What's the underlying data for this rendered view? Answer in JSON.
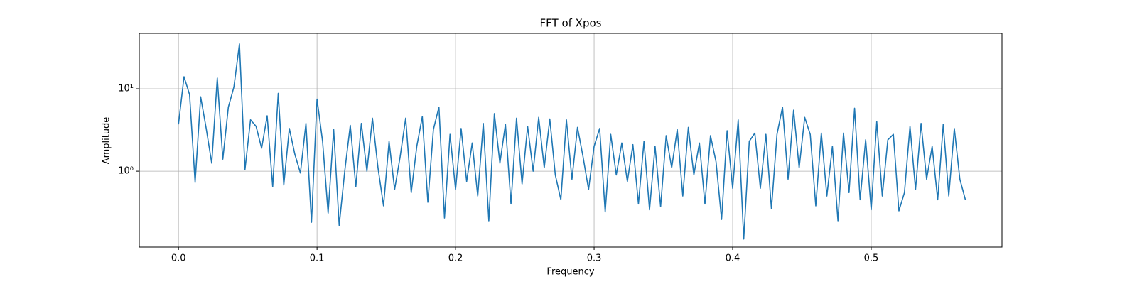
{
  "chart_data": {
    "type": "line",
    "title": "FFT of Xpos",
    "xlabel": "Frequency",
    "ylabel": "Amplitude",
    "yscale": "log",
    "grid": true,
    "xlim": [
      -0.0283,
      0.5944
    ],
    "ylim": [
      0.12,
      47
    ],
    "xticks": [
      {
        "value": 0,
        "label": "0.0"
      },
      0.1,
      0.2,
      0.3,
      0.4,
      0.5
    ],
    "yticks": [
      {
        "value": 1,
        "label": "10⁰"
      },
      {
        "value": 10,
        "label": "10¹"
      }
    ],
    "x": [
      0,
      0.004,
      0.008,
      0.012,
      0.016,
      0.02,
      0.024,
      0.028,
      0.032,
      0.036,
      0.04,
      0.044,
      0.048,
      0.052,
      0.056,
      0.06,
      0.064,
      0.068,
      0.072,
      0.076,
      0.08,
      0.084,
      0.088,
      0.092,
      0.096,
      0.1,
      0.104,
      0.108,
      0.112,
      0.116,
      0.12,
      0.124,
      0.128,
      0.132,
      0.136,
      0.14,
      0.144,
      0.148,
      0.152,
      0.156,
      0.16,
      0.164,
      0.168,
      0.172,
      0.176,
      0.18,
      0.184,
      0.188,
      0.192,
      0.196,
      0.2,
      0.204,
      0.208,
      0.212,
      0.216,
      0.22,
      0.224,
      0.228,
      0.232,
      0.236,
      0.24,
      0.244,
      0.248,
      0.252,
      0.256,
      0.26,
      0.264,
      0.268,
      0.272,
      0.276,
      0.28,
      0.284,
      0.288,
      0.292,
      0.296,
      0.3,
      0.304,
      0.308,
      0.312,
      0.316,
      0.32,
      0.324,
      0.328,
      0.332,
      0.336,
      0.34,
      0.344,
      0.348,
      0.352,
      0.356,
      0.36,
      0.364,
      0.368,
      0.372,
      0.376,
      0.38,
      0.384,
      0.388,
      0.392,
      0.396,
      0.4,
      0.404,
      0.408,
      0.412,
      0.416,
      0.42,
      0.424,
      0.428,
      0.432,
      0.436,
      0.44,
      0.444,
      0.448,
      0.452,
      0.456,
      0.46,
      0.464,
      0.468,
      0.472,
      0.476,
      0.48,
      0.484,
      0.488,
      0.492,
      0.496,
      0.5,
      0.504,
      0.508,
      0.512,
      0.516,
      0.52,
      0.524,
      0.528,
      0.532,
      0.536,
      0.54,
      0.544,
      0.548,
      0.552,
      0.556,
      0.56,
      0.564,
      0.568
    ],
    "series": [
      {
        "color": "#1f77b4",
        "values": [
          3.7,
          14,
          8.5,
          0.73,
          8,
          3.3,
          1.25,
          13.5,
          1.4,
          6,
          10.5,
          35,
          1.05,
          4.2,
          3.5,
          1.9,
          4.7,
          0.65,
          8.8,
          0.68,
          3.3,
          1.6,
          0.95,
          3.8,
          0.24,
          7.5,
          2.3,
          0.31,
          3.2,
          0.22,
          1.0,
          3.6,
          0.65,
          3.8,
          1.0,
          4.4,
          1.1,
          0.38,
          2.3,
          0.6,
          1.5,
          4.4,
          0.55,
          2.0,
          4.6,
          0.42,
          3.2,
          6.0,
          0.27,
          2.8,
          0.6,
          3.3,
          0.75,
          2.2,
          0.5,
          3.8,
          0.25,
          5.0,
          1.25,
          3.7,
          0.4,
          4.4,
          0.7,
          3.5,
          1.0,
          4.5,
          1.1,
          4.3,
          0.9,
          0.45,
          4.2,
          0.8,
          3.4,
          1.5,
          0.6,
          2.0,
          3.3,
          0.32,
          2.8,
          0.9,
          2.2,
          0.75,
          2.1,
          0.4,
          2.3,
          0.34,
          2.0,
          0.37,
          2.7,
          1.1,
          3.2,
          0.5,
          3.4,
          0.9,
          2.2,
          0.4,
          2.7,
          1.3,
          0.26,
          3.1,
          0.62,
          4.2,
          0.15,
          2.3,
          2.9,
          0.62,
          2.8,
          0.35,
          2.8,
          6.0,
          0.8,
          5.5,
          1.1,
          4.5,
          2.8,
          0.38,
          2.9,
          0.5,
          2.0,
          0.25,
          2.9,
          0.55,
          5.8,
          0.45,
          2.4,
          0.34,
          4.0,
          0.5,
          2.4,
          2.8,
          0.33,
          0.55,
          3.5,
          0.6,
          3.8,
          0.8,
          2.0,
          0.45,
          3.7,
          0.5,
          3.3,
          0.8,
          0.45
        ]
      }
    ]
  }
}
